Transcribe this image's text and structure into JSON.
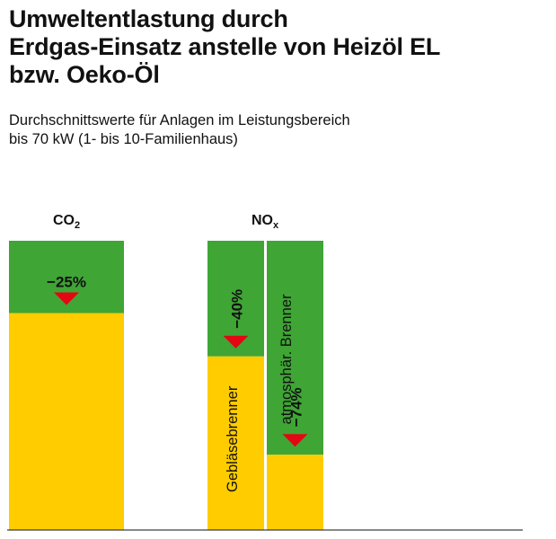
{
  "title_lines": [
    "Umweltentlastung durch",
    "Erdgas-Einsatz anstelle von Heizöl EL",
    "bzw. Oeko-Öl"
  ],
  "subtitle_lines": [
    "Durchschnittswerte für Anlagen im Leistungsbereich",
    "bis 70 kW (1- bis 10-Familienhaus)"
  ],
  "colors": {
    "baseline_remaining": "#FFCC00",
    "reduction": "#3FA535",
    "arrow": "#E30613"
  },
  "chart_data": {
    "type": "bar",
    "title": "Umweltentlastung durch Erdgas-Einsatz anstelle von Heizöl EL bzw. Oeko-Öl",
    "ylim": [
      0,
      100
    ],
    "grid": false,
    "groups": [
      {
        "label_main": "CO",
        "label_sub": "2",
        "bars": [
          {
            "reduction_pct": 25,
            "reduction_label": "−25%",
            "label": ""
          }
        ]
      },
      {
        "label_main": "NO",
        "label_sub": "x",
        "bars": [
          {
            "reduction_pct": 40,
            "reduction_label": "−40%",
            "label": "Gebläsebrenner"
          },
          {
            "reduction_pct": 74,
            "reduction_label": "−74%",
            "label": "atmosphär. Brenner"
          }
        ]
      }
    ]
  }
}
